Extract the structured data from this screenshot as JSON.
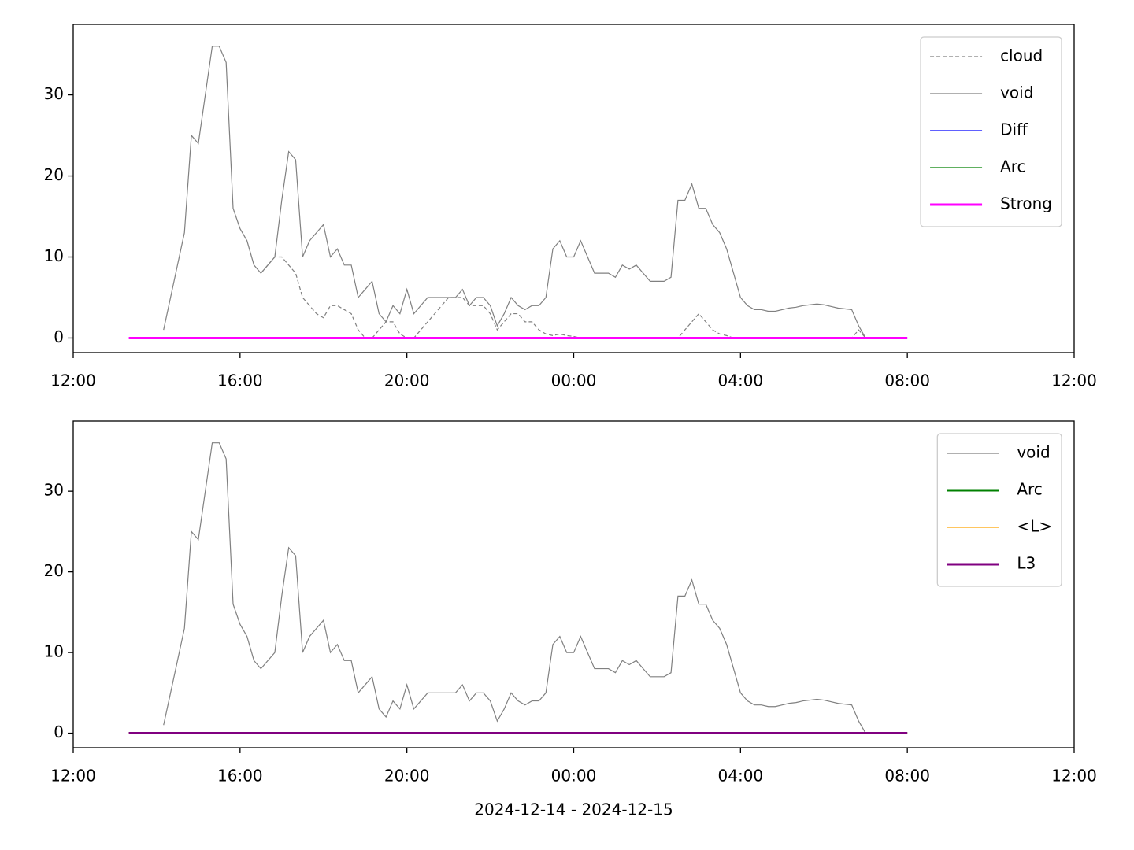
{
  "chart_data": [
    {
      "type": "line",
      "x": [
        "2024-12-14T14:10",
        "2024-12-14T14:20",
        "2024-12-14T14:30",
        "2024-12-14T14:40",
        "2024-12-14T14:50",
        "2024-12-14T15:00",
        "2024-12-14T15:10",
        "2024-12-14T15:20",
        "2024-12-14T15:30",
        "2024-12-14T15:40",
        "2024-12-14T15:50",
        "2024-12-14T16:00",
        "2024-12-14T16:10",
        "2024-12-14T16:20",
        "2024-12-14T16:30",
        "2024-12-14T16:40",
        "2024-12-14T16:50",
        "2024-12-14T17:00",
        "2024-12-14T17:10",
        "2024-12-14T17:20",
        "2024-12-14T17:30",
        "2024-12-14T17:40",
        "2024-12-14T17:50",
        "2024-12-14T18:00",
        "2024-12-14T18:10",
        "2024-12-14T18:20",
        "2024-12-14T18:30",
        "2024-12-14T18:40",
        "2024-12-14T18:50",
        "2024-12-14T19:00",
        "2024-12-14T19:10",
        "2024-12-14T19:20",
        "2024-12-14T19:30",
        "2024-12-14T19:40",
        "2024-12-14T19:50",
        "2024-12-14T20:00",
        "2024-12-14T20:10",
        "2024-12-14T20:20",
        "2024-12-14T20:30",
        "2024-12-14T20:40",
        "2024-12-14T20:50",
        "2024-12-14T21:00",
        "2024-12-14T21:10",
        "2024-12-14T21:20",
        "2024-12-14T21:30",
        "2024-12-14T21:40",
        "2024-12-14T21:50",
        "2024-12-14T22:00",
        "2024-12-14T22:10",
        "2024-12-14T22:20",
        "2024-12-14T22:30",
        "2024-12-14T22:40",
        "2024-12-14T22:50",
        "2024-12-14T23:00",
        "2024-12-14T23:10",
        "2024-12-14T23:20",
        "2024-12-14T23:30",
        "2024-12-14T23:40",
        "2024-12-14T23:50",
        "2024-12-15T00:00",
        "2024-12-15T00:10",
        "2024-12-15T00:20",
        "2024-12-15T00:30",
        "2024-12-15T00:40",
        "2024-12-15T00:50",
        "2024-12-15T01:00",
        "2024-12-15T01:10",
        "2024-12-15T01:20",
        "2024-12-15T01:30",
        "2024-12-15T01:40",
        "2024-12-15T01:50",
        "2024-12-15T02:00",
        "2024-12-15T02:10",
        "2024-12-15T02:20",
        "2024-12-15T02:30",
        "2024-12-15T02:40",
        "2024-12-15T02:50",
        "2024-12-15T03:00",
        "2024-12-15T03:10",
        "2024-12-15T03:20",
        "2024-12-15T03:30",
        "2024-12-15T03:40",
        "2024-12-15T03:50",
        "2024-12-15T04:00",
        "2024-12-15T04:10",
        "2024-12-15T04:20",
        "2024-12-15T04:30",
        "2024-12-15T04:40",
        "2024-12-15T04:50",
        "2024-12-15T05:00",
        "2024-12-15T05:10",
        "2024-12-15T05:20",
        "2024-12-15T05:30",
        "2024-12-15T05:40",
        "2024-12-15T05:50",
        "2024-12-15T06:00",
        "2024-12-15T06:10",
        "2024-12-15T06:20",
        "2024-12-15T06:30",
        "2024-12-15T06:40",
        "2024-12-15T06:50",
        "2024-12-15T07:00"
      ],
      "series": [
        {
          "name": "cloud",
          "color": "#808080",
          "dash": true,
          "linewidth": 1.2,
          "values": [
            null,
            null,
            null,
            null,
            null,
            null,
            null,
            null,
            null,
            null,
            null,
            null,
            null,
            null,
            8,
            9,
            10,
            10,
            9,
            8,
            5,
            4,
            3,
            2.5,
            4,
            4,
            3.5,
            3,
            1,
            0,
            0,
            1,
            2,
            2,
            0.5,
            0,
            0,
            1,
            2,
            3,
            4,
            5,
            5,
            5,
            4,
            4,
            4,
            3,
            1,
            2,
            3,
            3,
            2,
            2,
            1,
            0.5,
            0.3,
            0.5,
            0.3,
            0.2,
            0,
            0,
            0,
            0,
            0,
            0,
            0,
            0,
            0,
            0,
            0,
            0,
            0,
            0,
            0,
            1,
            2,
            3,
            2,
            1,
            0.5,
            0.3,
            0,
            0,
            0,
            0,
            0,
            0,
            0,
            0,
            0,
            0,
            0,
            0,
            0,
            0,
            0,
            0,
            0,
            0,
            1,
            0
          ]
        },
        {
          "name": "void",
          "color": "#808080",
          "linewidth": 1.2,
          "values": [
            1,
            5,
            9,
            13,
            25,
            24,
            30,
            36,
            36,
            34,
            16,
            13.5,
            12,
            9,
            8,
            9,
            10,
            17,
            23,
            22,
            10,
            12,
            13,
            14,
            10,
            11,
            9,
            9,
            5,
            6,
            7,
            3,
            2,
            4,
            3,
            6,
            3,
            4,
            5,
            5,
            5,
            5,
            5,
            6,
            4,
            5,
            5,
            4,
            1.5,
            3,
            5,
            4,
            3.5,
            4,
            4,
            5,
            11,
            12,
            10,
            10,
            12,
            10,
            8,
            8,
            8,
            7.5,
            9,
            8.5,
            9,
            8,
            7,
            7,
            7,
            7.5,
            17,
            17,
            19,
            16,
            16,
            14,
            13,
            11,
            8,
            5,
            4,
            3.5,
            3.5,
            3.3,
            3.3,
            3.5,
            3.7,
            3.8,
            4,
            4.1,
            4.2,
            4.1,
            3.9,
            3.7,
            3.6,
            3.5,
            1.5,
            0
          ]
        },
        {
          "name": "Diff",
          "color": "#0000ff",
          "linewidth": 1.2,
          "x": [
            "2024-12-14T13:20",
            "2024-12-15T08:00"
          ],
          "values": [
            0,
            0
          ]
        },
        {
          "name": "Arc",
          "color": "#008000",
          "linewidth": 1.2,
          "x": [
            "2024-12-14T13:20",
            "2024-12-15T08:00"
          ],
          "values": [
            0,
            0
          ]
        },
        {
          "name": "Strong",
          "color": "#ff00ff",
          "linewidth": 3,
          "x": [
            "2024-12-14T13:20",
            "2024-12-15T08:00"
          ],
          "values": [
            0,
            0
          ]
        }
      ],
      "xlim": [
        "2024-12-14T12:00",
        "2024-12-15T12:00"
      ],
      "xticks": [
        {
          "value": "2024-12-14T12:00",
          "label": "12:00"
        },
        {
          "value": "2024-12-14T16:00",
          "label": "16:00"
        },
        {
          "value": "2024-12-14T20:00",
          "label": "20:00"
        },
        {
          "value": "2024-12-15T00:00",
          "label": "00:00"
        },
        {
          "value": "2024-12-15T04:00",
          "label": "04:00"
        },
        {
          "value": "2024-12-15T08:00",
          "label": "08:00"
        },
        {
          "value": "2024-12-15T12:00",
          "label": "12:00"
        }
      ],
      "ylim": [
        -1.8,
        38.7
      ],
      "yticks": [
        0,
        10,
        20,
        30
      ],
      "legend": "upper right"
    },
    {
      "type": "line",
      "x": [
        "2024-12-14T14:10",
        "2024-12-14T14:20",
        "2024-12-14T14:30",
        "2024-12-14T14:40",
        "2024-12-14T14:50",
        "2024-12-14T15:00",
        "2024-12-14T15:10",
        "2024-12-14T15:20",
        "2024-12-14T15:30",
        "2024-12-14T15:40",
        "2024-12-14T15:50",
        "2024-12-14T16:00",
        "2024-12-14T16:10",
        "2024-12-14T16:20",
        "2024-12-14T16:30",
        "2024-12-14T16:40",
        "2024-12-14T16:50",
        "2024-12-14T17:00",
        "2024-12-14T17:10",
        "2024-12-14T17:20",
        "2024-12-14T17:30",
        "2024-12-14T17:40",
        "2024-12-14T17:50",
        "2024-12-14T18:00",
        "2024-12-14T18:10",
        "2024-12-14T18:20",
        "2024-12-14T18:30",
        "2024-12-14T18:40",
        "2024-12-14T18:50",
        "2024-12-14T19:00",
        "2024-12-14T19:10",
        "2024-12-14T19:20",
        "2024-12-14T19:30",
        "2024-12-14T19:40",
        "2024-12-14T19:50",
        "2024-12-14T20:00",
        "2024-12-14T20:10",
        "2024-12-14T20:20",
        "2024-12-14T20:30",
        "2024-12-14T20:40",
        "2024-12-14T20:50",
        "2024-12-14T21:00",
        "2024-12-14T21:10",
        "2024-12-14T21:20",
        "2024-12-14T21:30",
        "2024-12-14T21:40",
        "2024-12-14T21:50",
        "2024-12-14T22:00",
        "2024-12-14T22:10",
        "2024-12-14T22:20",
        "2024-12-14T22:30",
        "2024-12-14T22:40",
        "2024-12-14T22:50",
        "2024-12-14T23:00",
        "2024-12-14T23:10",
        "2024-12-14T23:20",
        "2024-12-14T23:30",
        "2024-12-14T23:40",
        "2024-12-14T23:50",
        "2024-12-15T00:00",
        "2024-12-15T00:10",
        "2024-12-15T00:20",
        "2024-12-15T00:30",
        "2024-12-15T00:40",
        "2024-12-15T00:50",
        "2024-12-15T01:00",
        "2024-12-15T01:10",
        "2024-12-15T01:20",
        "2024-12-15T01:30",
        "2024-12-15T01:40",
        "2024-12-15T01:50",
        "2024-12-15T02:00",
        "2024-12-15T02:10",
        "2024-12-15T02:20",
        "2024-12-15T02:30",
        "2024-12-15T02:40",
        "2024-12-15T02:50",
        "2024-12-15T03:00",
        "2024-12-15T03:10",
        "2024-12-15T03:20",
        "2024-12-15T03:30",
        "2024-12-15T03:40",
        "2024-12-15T03:50",
        "2024-12-15T04:00",
        "2024-12-15T04:10",
        "2024-12-15T04:20",
        "2024-12-15T04:30",
        "2024-12-15T04:40",
        "2024-12-15T04:50",
        "2024-12-15T05:00",
        "2024-12-15T05:10",
        "2024-12-15T05:20",
        "2024-12-15T05:30",
        "2024-12-15T05:40",
        "2024-12-15T05:50",
        "2024-12-15T06:00",
        "2024-12-15T06:10",
        "2024-12-15T06:20",
        "2024-12-15T06:30",
        "2024-12-15T06:40",
        "2024-12-15T06:50",
        "2024-12-15T07:00"
      ],
      "series": [
        {
          "name": "void",
          "color": "#808080",
          "linewidth": 1.2,
          "values": [
            1,
            5,
            9,
            13,
            25,
            24,
            30,
            36,
            36,
            34,
            16,
            13.5,
            12,
            9,
            8,
            9,
            10,
            17,
            23,
            22,
            10,
            12,
            13,
            14,
            10,
            11,
            9,
            9,
            5,
            6,
            7,
            3,
            2,
            4,
            3,
            6,
            3,
            4,
            5,
            5,
            5,
            5,
            5,
            6,
            4,
            5,
            5,
            4,
            1.5,
            3,
            5,
            4,
            3.5,
            4,
            4,
            5,
            11,
            12,
            10,
            10,
            12,
            10,
            8,
            8,
            8,
            7.5,
            9,
            8.5,
            9,
            8,
            7,
            7,
            7,
            7.5,
            17,
            17,
            19,
            16,
            16,
            14,
            13,
            11,
            8,
            5,
            4,
            3.5,
            3.5,
            3.3,
            3.3,
            3.5,
            3.7,
            3.8,
            4,
            4.1,
            4.2,
            4.1,
            3.9,
            3.7,
            3.6,
            3.5,
            1.5,
            0
          ]
        },
        {
          "name": "Arc",
          "color": "#008000",
          "linewidth": 3,
          "x": [
            "2024-12-14T13:20",
            "2024-12-15T08:00"
          ],
          "values": [
            0,
            0
          ]
        },
        {
          "name": "<L>",
          "color": "#ffa500",
          "linewidth": 1.2,
          "x": [
            "2024-12-14T13:20",
            "2024-12-15T08:00"
          ],
          "values": [
            0,
            0
          ]
        },
        {
          "name": "L3",
          "color": "#800080",
          "linewidth": 3,
          "x": [
            "2024-12-14T13:20",
            "2024-12-15T08:00"
          ],
          "values": [
            0,
            0
          ]
        }
      ],
      "xlim": [
        "2024-12-14T12:00",
        "2024-12-15T12:00"
      ],
      "xticks": [
        {
          "value": "2024-12-14T12:00",
          "label": "12:00"
        },
        {
          "value": "2024-12-14T16:00",
          "label": "16:00"
        },
        {
          "value": "2024-12-14T20:00",
          "label": "20:00"
        },
        {
          "value": "2024-12-15T00:00",
          "label": "00:00"
        },
        {
          "value": "2024-12-15T04:00",
          "label": "04:00"
        },
        {
          "value": "2024-12-15T08:00",
          "label": "08:00"
        },
        {
          "value": "2024-12-15T12:00",
          "label": "12:00"
        }
      ],
      "ylim": [
        -1.8,
        38.7
      ],
      "yticks": [
        0,
        10,
        20,
        30
      ],
      "legend": "upper right",
      "xlabel": "2024-12-14 - 2024-12-15"
    }
  ]
}
